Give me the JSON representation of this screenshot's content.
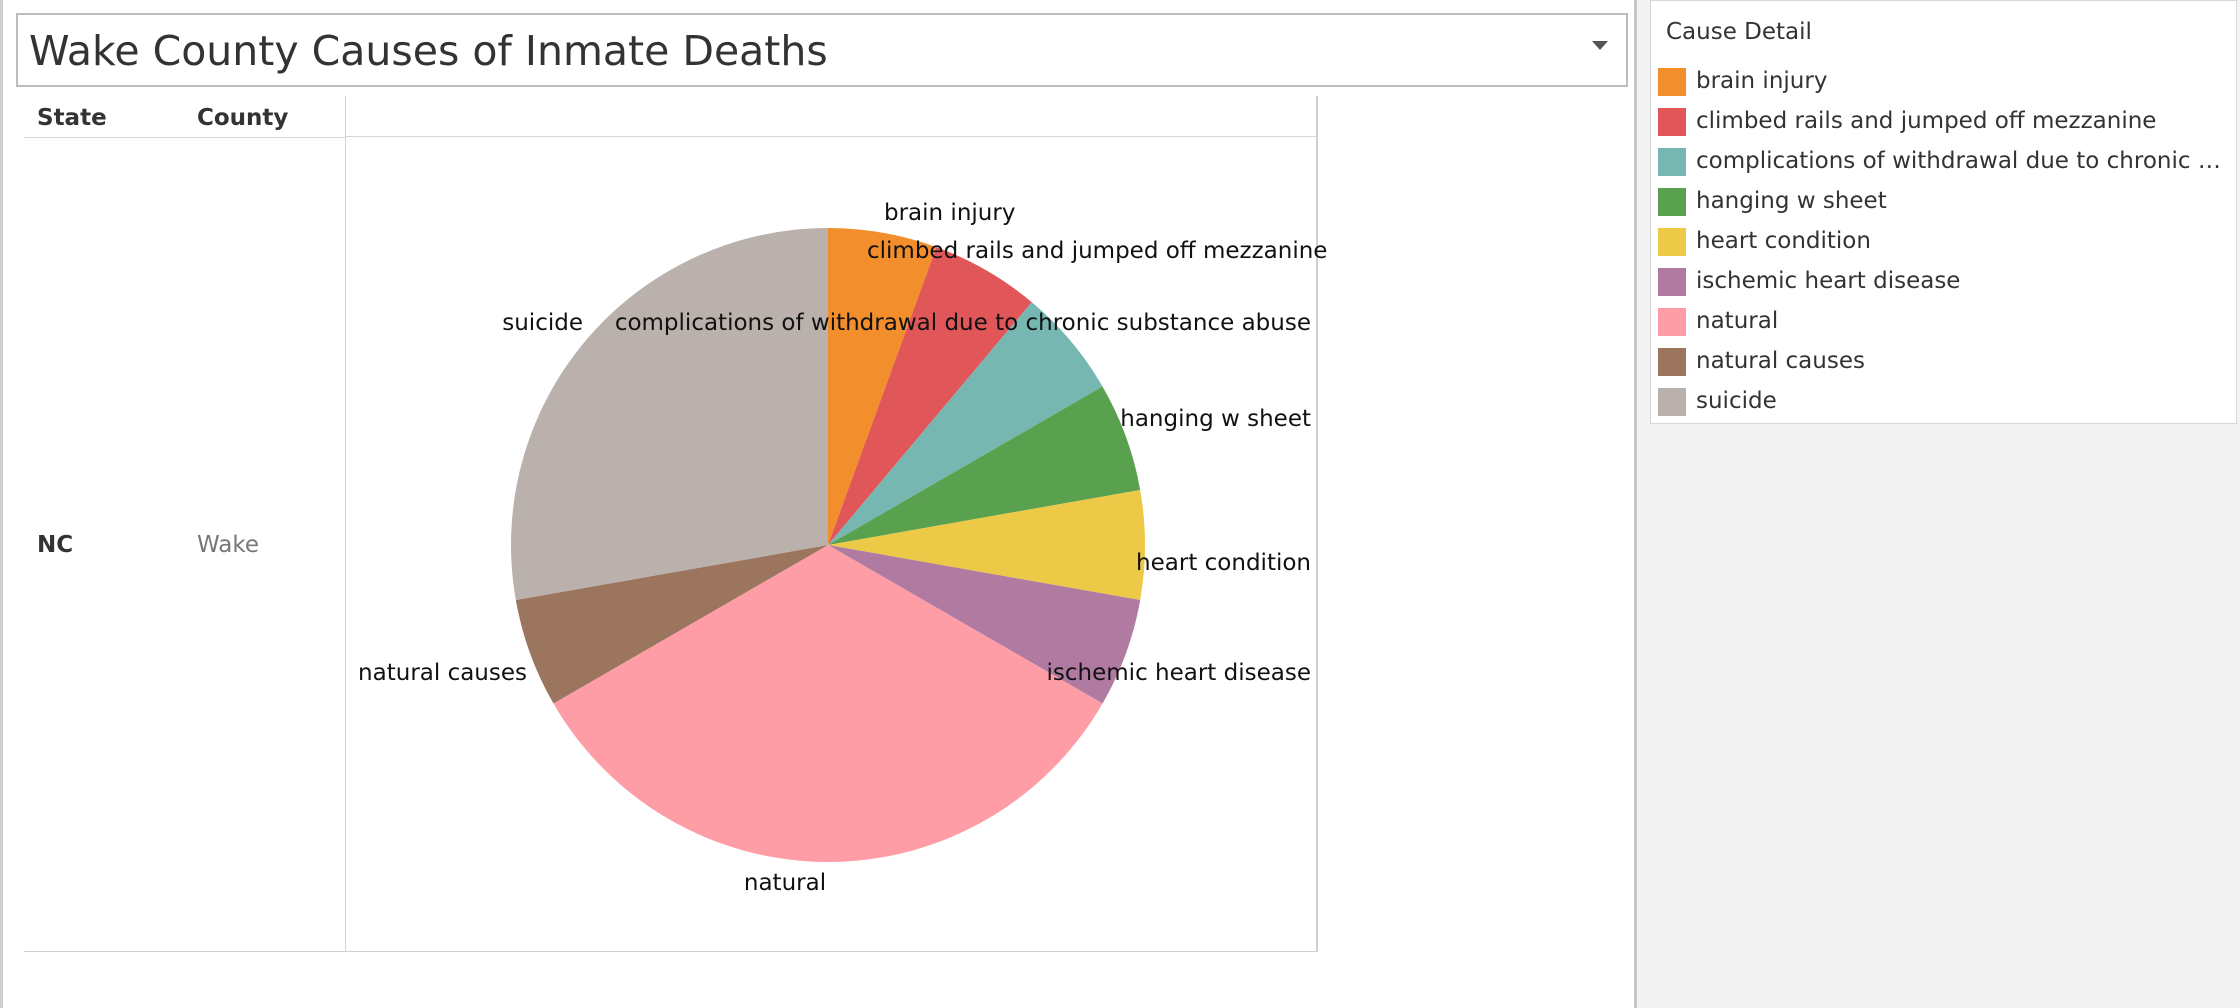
{
  "title": "Wake County Causes of Inmate Deaths",
  "table": {
    "headers": {
      "state": "State",
      "county": "County"
    },
    "row": {
      "state": "NC",
      "county": "Wake"
    }
  },
  "legend": {
    "title": "Cause Detail",
    "items": [
      {
        "label": "brain injury",
        "color": "#f28e2b"
      },
      {
        "label": "climbed rails and jumped off mezzanine",
        "color": "#e15759"
      },
      {
        "label": "complications of withdrawal due to chronic su..",
        "color": "#76b7b2"
      },
      {
        "label": "hanging w sheet",
        "color": "#59a14f"
      },
      {
        "label": "heart condition",
        "color": "#edc948"
      },
      {
        "label": "ischemic heart disease",
        "color": "#b07aa1"
      },
      {
        "label": "natural",
        "color": "#ff9da7"
      },
      {
        "label": "natural causes",
        "color": "#9c755f"
      },
      {
        "label": "suicide",
        "color": "#bab0ac"
      }
    ]
  },
  "chart_data": {
    "type": "pie",
    "categories": [
      "brain injury",
      "climbed rails and jumped off mezzanine",
      "complications of withdrawal due to chronic substance abuse",
      "hanging w sheet",
      "heart condition",
      "ischemic heart disease",
      "natural",
      "natural causes",
      "suicide"
    ],
    "values": [
      1,
      1,
      1,
      1,
      1,
      1,
      6,
      1,
      5
    ],
    "colors": [
      "#f28e2b",
      "#e15759",
      "#76b7b2",
      "#59a14f",
      "#edc948",
      "#b07aa1",
      "#ff9da7",
      "#9c755f",
      "#bab0ac"
    ],
    "title": "",
    "legend_position": "right"
  }
}
